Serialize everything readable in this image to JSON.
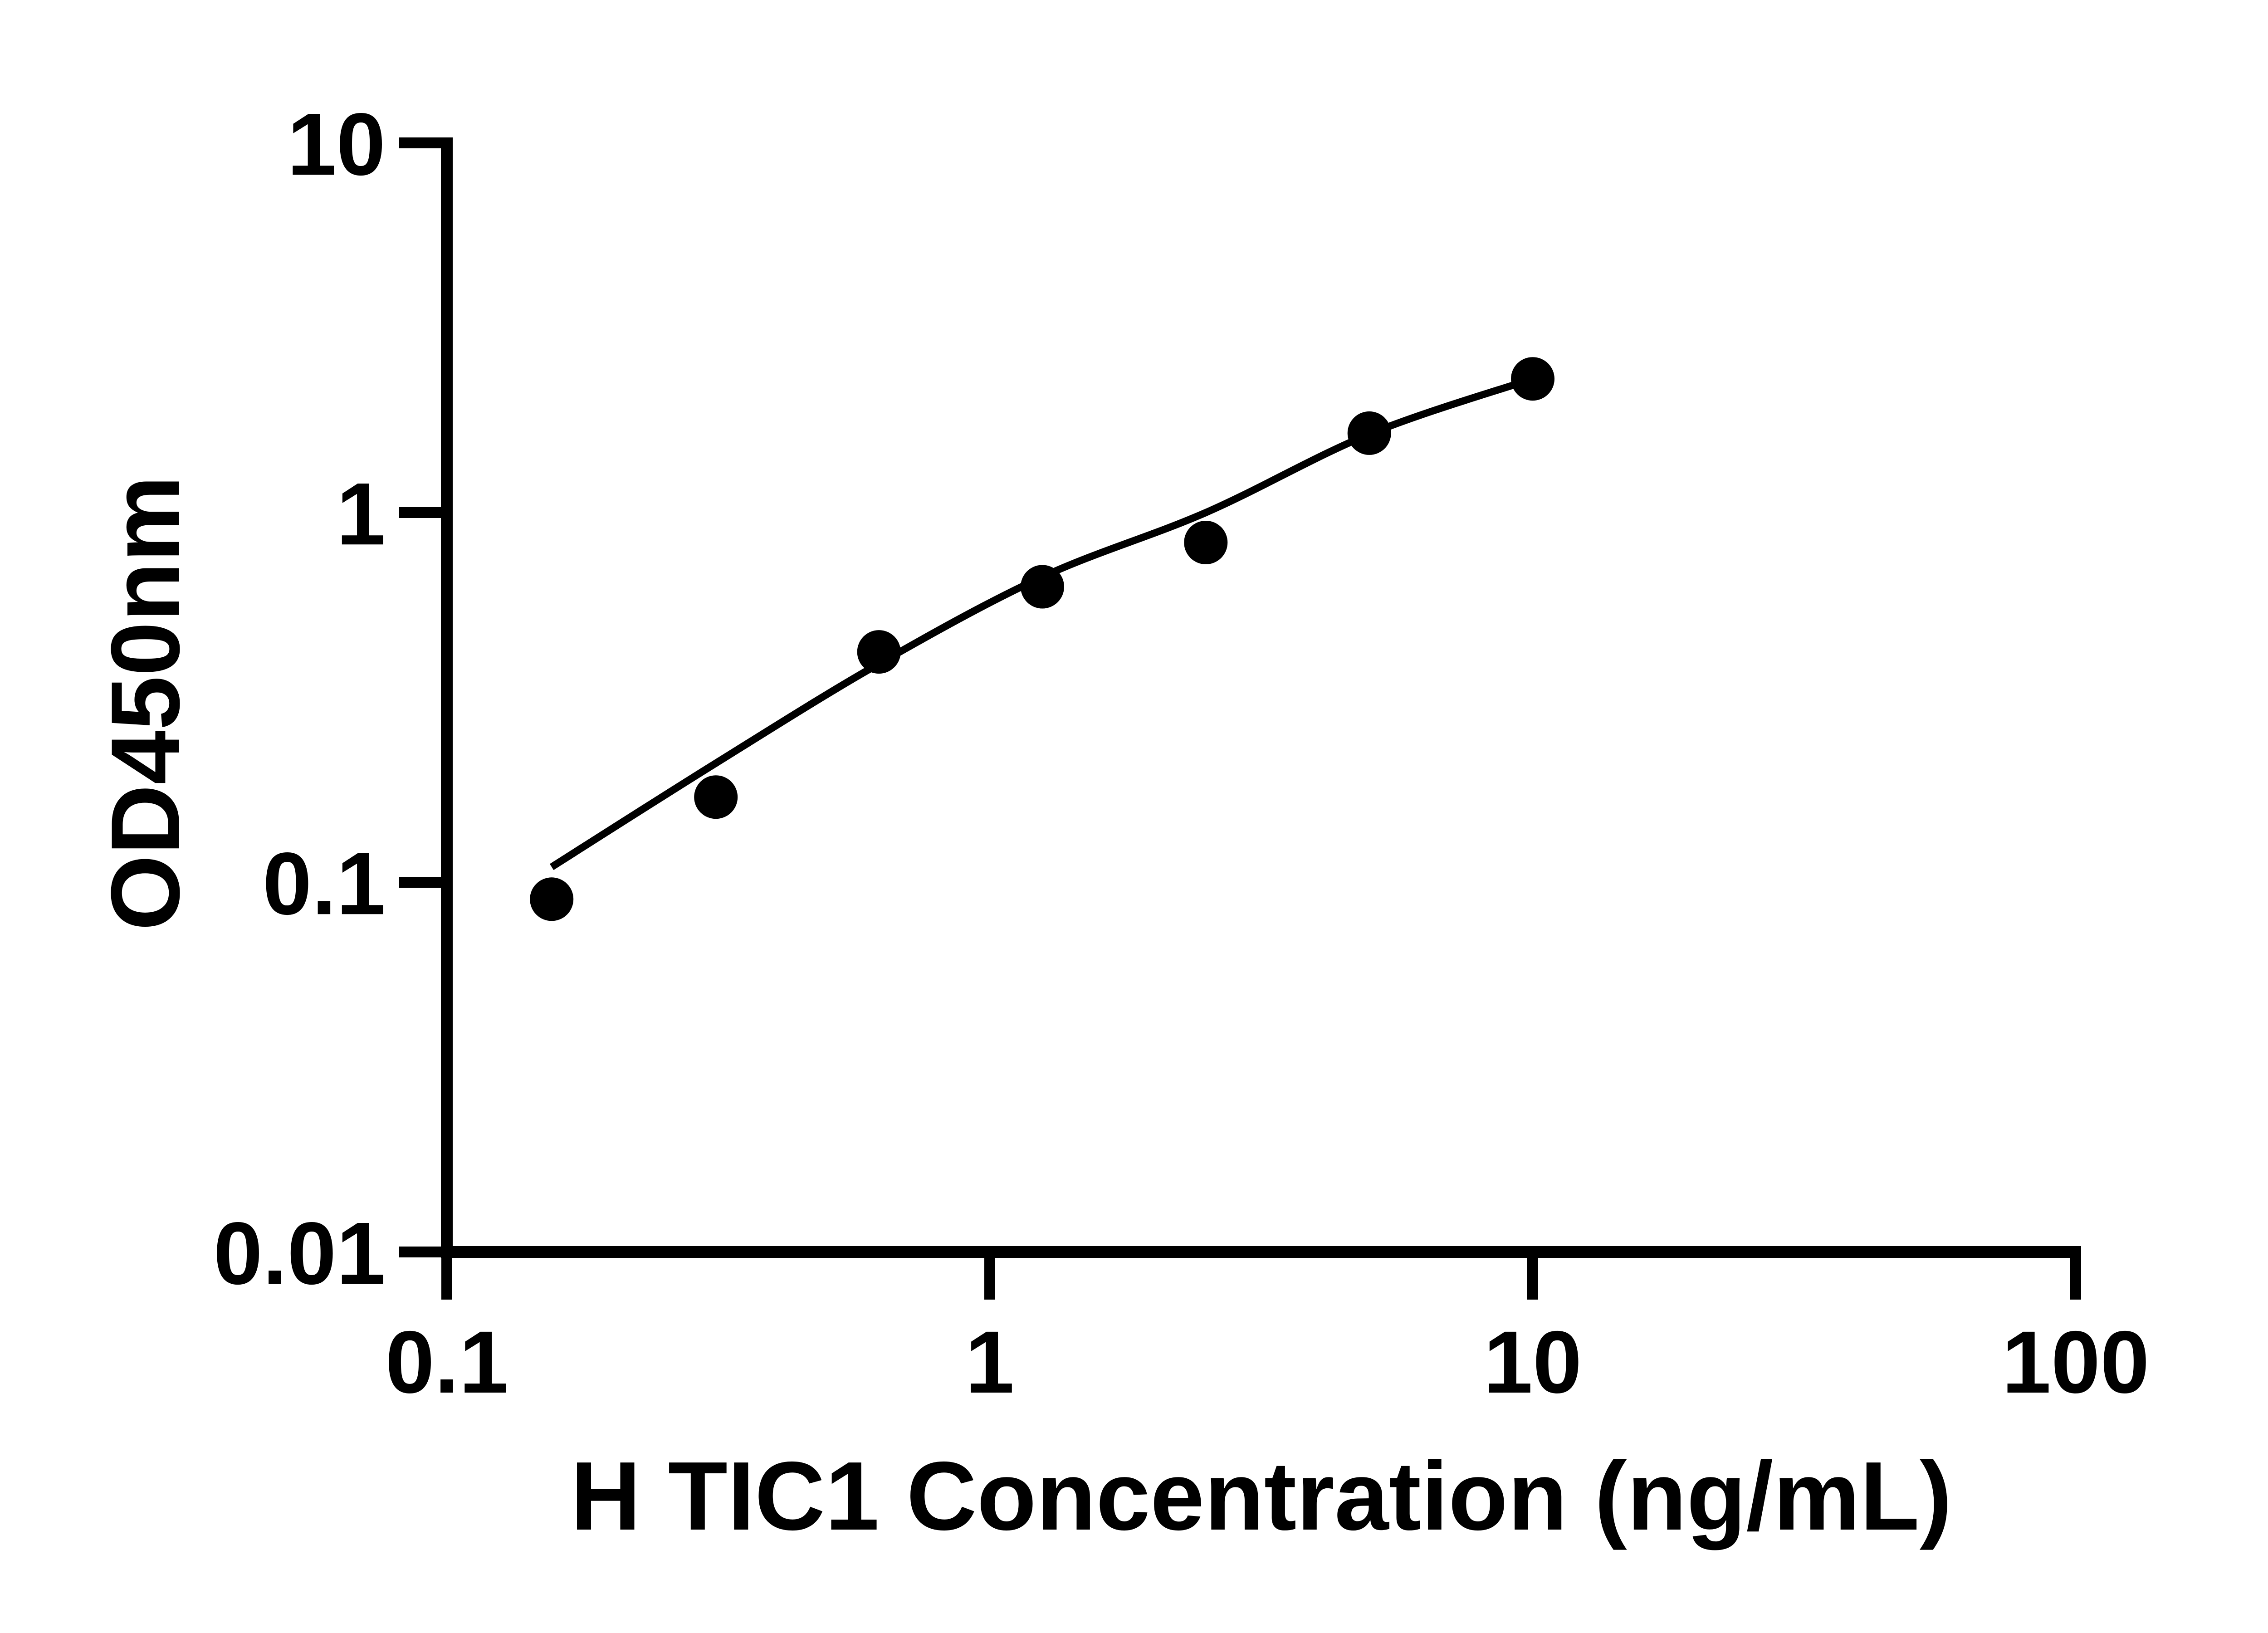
{
  "figure": {
    "background_color": "#ffffff",
    "ink_color": "#000000"
  },
  "chart_data": {
    "type": "scatter",
    "title": "",
    "xlabel": "H TIC1 Concentration (ng/mL)",
    "ylabel": "OD450nm",
    "x_scale": "log",
    "y_scale": "log",
    "xlim": [
      0.1,
      100
    ],
    "ylim": [
      0.01,
      10
    ],
    "x_ticks": [
      0.1,
      1,
      10,
      100
    ],
    "x_tick_labels": [
      "0.1",
      "1",
      "10",
      "100"
    ],
    "y_ticks": [
      10,
      1,
      0.1,
      0.01
    ],
    "y_tick_labels": [
      "10",
      "1",
      "0.1",
      "0.01"
    ],
    "grid": false,
    "legend_position": "none",
    "marker_style": "filled-circle",
    "marker_color": "#000000",
    "line_color": "#000000",
    "series": [
      {
        "name": "standard-curve-points",
        "x": [
          0.156,
          0.313,
          0.625,
          1.25,
          2.5,
          5,
          10
        ],
        "y": [
          0.09,
          0.17,
          0.42,
          0.63,
          0.83,
          1.64,
          2.3
        ]
      }
    ],
    "fit_curve": {
      "name": "fitted-standard-curve",
      "x": [
        0.156,
        0.313,
        0.625,
        1.25,
        2.5,
        5,
        10
      ],
      "y": [
        0.11,
        0.21,
        0.39,
        0.67,
        1.0,
        1.63,
        2.3
      ]
    }
  }
}
